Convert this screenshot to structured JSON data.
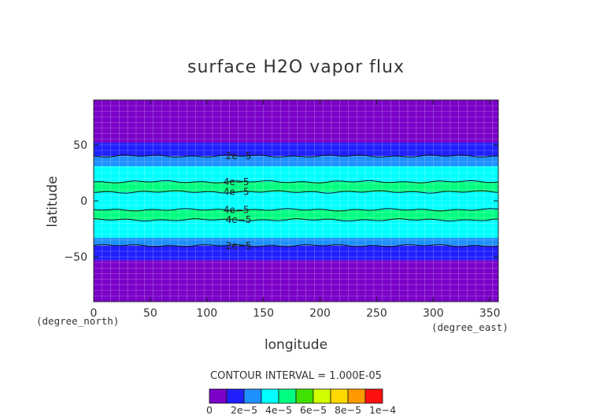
{
  "chart_data": {
    "type": "heatmap",
    "title": "surface H2O vapor flux",
    "xlabel": "longitude",
    "ylabel": "latitude",
    "x_unit": "(degree_east)",
    "y_unit": "(degree_north)",
    "xlim": [
      0,
      357.5
    ],
    "ylim": [
      -90,
      90
    ],
    "x_ticks": [
      0,
      50,
      100,
      150,
      200,
      250,
      300,
      350
    ],
    "y_ticks": [
      -50,
      0,
      50
    ],
    "x_tick_labels": [
      "0",
      "50",
      "100",
      "150",
      "200",
      "250",
      "300",
      "350"
    ],
    "y_tick_labels": [
      "−50",
      "0",
      "50"
    ],
    "contour_interval_text": "CONTOUR INTERVAL = 1.000E-05",
    "colorbar": {
      "levels": [
        0,
        1e-05,
        2e-05,
        3e-05,
        4e-05,
        5e-05,
        6e-05,
        7e-05,
        8e-05,
        9e-05,
        0.0001
      ],
      "colors": [
        "#7b00c8",
        "#2020ff",
        "#1e90ff",
        "#00ffff",
        "#00ff80",
        "#40e000",
        "#d0ff00",
        "#ffd800",
        "#ff9900",
        "#ff1010",
        "#ff8c8c"
      ],
      "tick_labels": [
        "0",
        "2e−5",
        "4e−5",
        "6e−5",
        "8e−5",
        "1e−4"
      ]
    },
    "bands": [
      {
        "lat_min": -90,
        "lat_max": -53,
        "value_min": 0,
        "value_max": 1e-05
      },
      {
        "lat_min": -53,
        "lat_max": -40,
        "value_min": 1e-05,
        "value_max": 2e-05
      },
      {
        "lat_min": -40,
        "lat_max": -33,
        "value_min": 2e-05,
        "value_max": 3e-05
      },
      {
        "lat_min": -33,
        "lat_max": -17,
        "value_min": 3e-05,
        "value_max": 4e-05
      },
      {
        "lat_min": -17,
        "lat_max": -8,
        "value_min": 4e-05,
        "value_max": 5e-05
      },
      {
        "lat_min": -8,
        "lat_max": -3,
        "value_min": 3e-05,
        "value_max": 4e-05
      },
      {
        "lat_min": -3,
        "lat_max": 8,
        "value_min": 3e-05,
        "value_max": 4e-05
      },
      {
        "lat_min": 8,
        "lat_max": 17,
        "value_min": 4e-05,
        "value_max": 5e-05
      },
      {
        "lat_min": 17,
        "lat_max": 31,
        "value_min": 3e-05,
        "value_max": 4e-05
      },
      {
        "lat_min": 31,
        "lat_max": 40,
        "value_min": 2e-05,
        "value_max": 3e-05
      },
      {
        "lat_min": 40,
        "lat_max": 52,
        "value_min": 1e-05,
        "value_max": 2e-05
      },
      {
        "lat_min": 52,
        "lat_max": 90,
        "value_min": 0,
        "value_max": 1e-05
      }
    ],
    "contours": [
      {
        "lat": -40,
        "label": "2e−5",
        "label_lon": 128
      },
      {
        "lat": -17,
        "label": "4e−5",
        "label_lon": 128
      },
      {
        "lat": -8,
        "label": "4e−5",
        "label_lon": 126
      },
      {
        "lat": 8,
        "label": "4e−5",
        "label_lon": 126
      },
      {
        "lat": 17,
        "label": "4e−5",
        "label_lon": 126
      },
      {
        "lat": 40,
        "label": "2e−5",
        "label_lon": 128
      }
    ],
    "grid": true
  }
}
